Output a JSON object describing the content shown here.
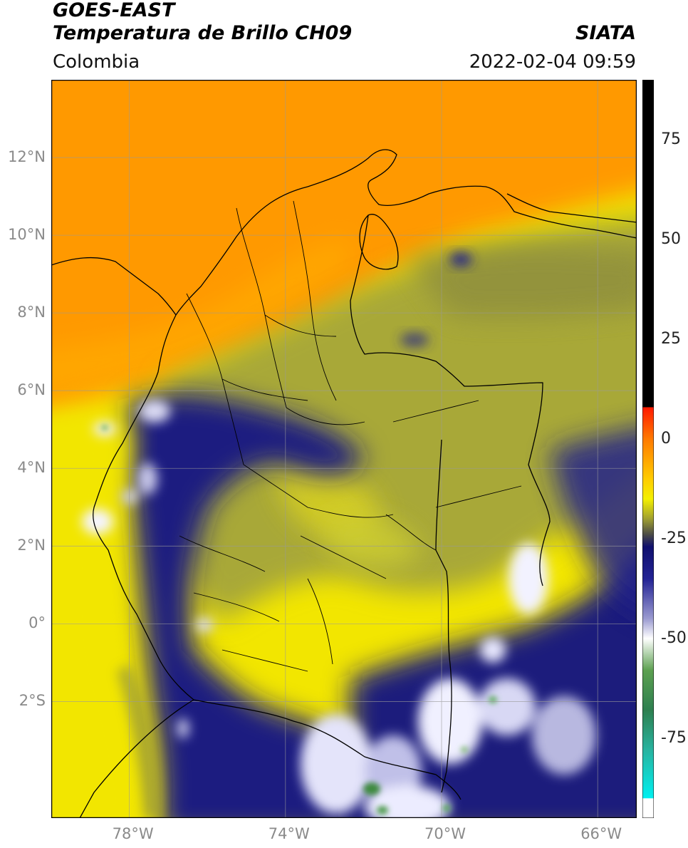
{
  "header": {
    "satellite": "GOES-EAST",
    "product": "Temperatura de Brillo CH09",
    "agency": "SIATA",
    "region": "Colombia",
    "datetime": "2022-02-04 09:59"
  },
  "map": {
    "lon_range": [
      -80.0,
      -65.0
    ],
    "lat_range": [
      -5.0,
      14.0
    ],
    "lat_ticks": [
      {
        "value": 12,
        "label": "12°N"
      },
      {
        "value": 10,
        "label": "10°N"
      },
      {
        "value": 8,
        "label": "8°N"
      },
      {
        "value": 6,
        "label": "6°N"
      },
      {
        "value": 4,
        "label": "4°N"
      },
      {
        "value": 2,
        "label": "2°N"
      },
      {
        "value": 0,
        "label": "0°"
      },
      {
        "value": -2,
        "label": "2°S"
      }
    ],
    "lon_ticks": [
      {
        "value": -78,
        "label": "78°W"
      },
      {
        "value": -74,
        "label": "74°W"
      },
      {
        "value": -70,
        "label": "70°W"
      },
      {
        "value": -66,
        "label": "66°W"
      }
    ],
    "grid": true
  },
  "colorbar": {
    "range": [
      -95,
      90
    ],
    "ticks": [
      {
        "value": 75,
        "label": "75"
      },
      {
        "value": 50,
        "label": "50"
      },
      {
        "value": 25,
        "label": "25"
      },
      {
        "value": 0,
        "label": "0"
      },
      {
        "value": -25,
        "label": "-25"
      },
      {
        "value": -50,
        "label": "-50"
      },
      {
        "value": -75,
        "label": "-75"
      }
    ],
    "stops": [
      {
        "value": 90,
        "color": "#000000"
      },
      {
        "value": 8,
        "color": "#000000"
      },
      {
        "value": 7.9,
        "color": "#ff1a00"
      },
      {
        "value": 0,
        "color": "#ff7a00"
      },
      {
        "value": -10,
        "color": "#ffcc00"
      },
      {
        "value": -15,
        "color": "#f4f000"
      },
      {
        "value": -20,
        "color": "#a0a030"
      },
      {
        "value": -24,
        "color": "#4a4a48"
      },
      {
        "value": -27,
        "color": "#10106e"
      },
      {
        "value": -35,
        "color": "#232394"
      },
      {
        "value": -45,
        "color": "#9a9ad0"
      },
      {
        "value": -50,
        "color": "#ffffff"
      },
      {
        "value": -58,
        "color": "#5ca050"
      },
      {
        "value": -68,
        "color": "#2e8050"
      },
      {
        "value": -78,
        "color": "#28b4a0"
      },
      {
        "value": -90,
        "color": "#00f0f0"
      },
      {
        "value": -90.1,
        "color": "#ffffff"
      },
      {
        "value": -95,
        "color": "#ffffff"
      }
    ]
  },
  "colors": {
    "warm_sea_orange": "#ff9900",
    "yellow": "#f2e600",
    "olive": "#a8a838",
    "deep_cloud": "#181878",
    "cold_top": "#ffffff",
    "boundary": "#000000"
  }
}
